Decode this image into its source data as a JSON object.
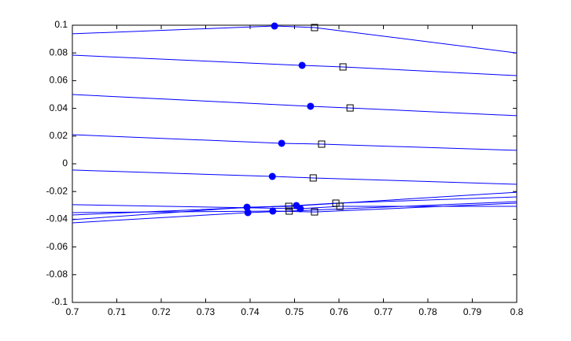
{
  "chart_data": {
    "type": "line",
    "xlim": [
      0.7,
      0.8
    ],
    "ylim": [
      -0.1,
      0.1
    ],
    "xticks": [
      0.7,
      0.71,
      0.72,
      0.73,
      0.74,
      0.75,
      0.76,
      0.77,
      0.78,
      0.79,
      0.8
    ],
    "yticks": [
      -0.1,
      -0.08,
      -0.06,
      -0.04,
      -0.02,
      0,
      0.02,
      0.04,
      0.06,
      0.08,
      0.1
    ],
    "grid": false,
    "series": [
      {
        "kind": "line",
        "color": "#0000ff",
        "x": [
          0.7,
          0.7455,
          0.7545,
          0.8
        ],
        "values": [
          0.0938,
          0.0994,
          0.0983,
          0.08
        ]
      },
      {
        "kind": "line",
        "color": "#0000ff",
        "x": [
          0.7,
          0.7517,
          0.7609,
          0.8
        ],
        "values": [
          0.0784,
          0.071,
          0.0699,
          0.0636
        ]
      },
      {
        "kind": "line",
        "color": "#0000ff",
        "x": [
          0.7,
          0.7536,
          0.7625,
          0.8
        ],
        "values": [
          0.05,
          0.0415,
          0.0403,
          0.0347
        ]
      },
      {
        "kind": "line",
        "color": "#0000ff",
        "x": [
          0.7,
          0.7471,
          0.7561,
          0.8
        ],
        "values": [
          0.021,
          0.0148,
          0.0142,
          0.0097
        ]
      },
      {
        "kind": "line",
        "color": "#0000ff",
        "x": [
          0.7,
          0.745,
          0.7542,
          0.8
        ],
        "values": [
          -0.0045,
          -0.0091,
          -0.0102,
          -0.0148
        ]
      },
      {
        "kind": "line",
        "color": "#0000ff",
        "x": [
          0.7,
          0.7395,
          0.7488,
          0.8
        ],
        "values": [
          -0.0426,
          -0.0352,
          -0.0341,
          -0.0273
        ]
      },
      {
        "kind": "line",
        "color": "#0000ff",
        "x": [
          0.7,
          0.7393,
          0.7487,
          0.8
        ],
        "values": [
          -0.0403,
          -0.0313,
          -0.0307,
          -0.0205
        ]
      },
      {
        "kind": "line",
        "color": "#0000ff",
        "x": [
          0.7,
          0.7451,
          0.7545,
          0.8
        ],
        "values": [
          -0.0352,
          -0.0341,
          -0.0347,
          -0.0284
        ]
      },
      {
        "kind": "line",
        "color": "#0000ff",
        "x": [
          0.7,
          0.7504,
          0.7593,
          0.8
        ],
        "values": [
          -0.0369,
          -0.0301,
          -0.0284,
          -0.0239
        ]
      },
      {
        "kind": "line",
        "color": "#0000ff",
        "x": [
          0.7,
          0.7513,
          0.7602,
          0.8
        ],
        "values": [
          -0.0295,
          -0.0324,
          -0.0307,
          -0.0307
        ]
      },
      {
        "kind": "scatter",
        "marker": "circle",
        "color": "#0000ff",
        "x": [
          0.7455,
          0.7517,
          0.7536,
          0.7471,
          0.745,
          0.7395,
          0.7393,
          0.7451,
          0.7504,
          0.7513
        ],
        "values": [
          0.0994,
          0.071,
          0.0415,
          0.0148,
          -0.0091,
          -0.0352,
          -0.0313,
          -0.0341,
          -0.0301,
          -0.0324
        ]
      },
      {
        "kind": "scatter",
        "marker": "square",
        "color": "#000000",
        "x": [
          0.7545,
          0.7609,
          0.7625,
          0.7561,
          0.7542,
          0.7488,
          0.7487,
          0.7545,
          0.7593,
          0.7602
        ],
        "values": [
          0.0983,
          0.0699,
          0.0403,
          0.0142,
          -0.0102,
          -0.0341,
          -0.0307,
          -0.0347,
          -0.0284,
          -0.0307
        ]
      }
    ]
  }
}
